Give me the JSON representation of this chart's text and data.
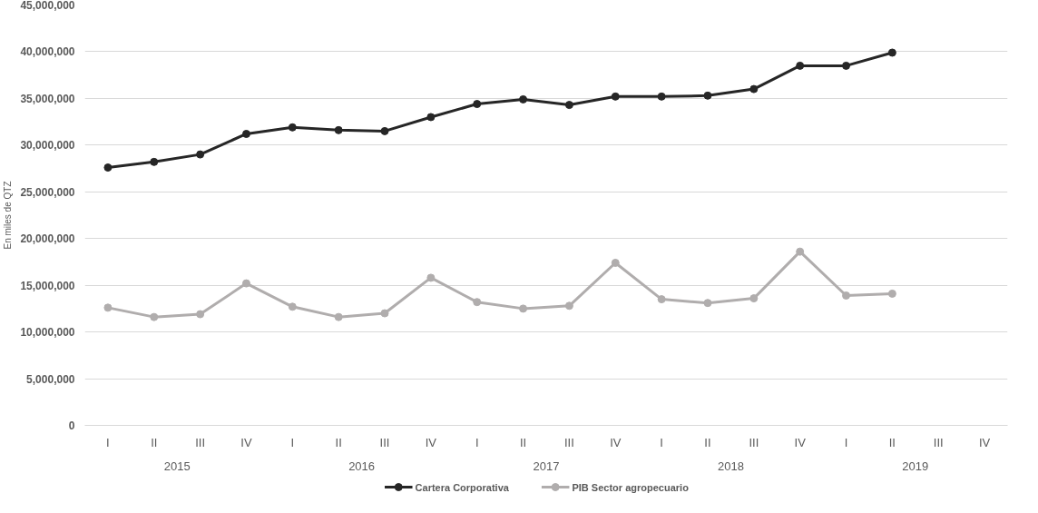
{
  "chart_data": {
    "type": "line",
    "ylabel": "En miles de QTZ",
    "categories": [
      "I",
      "II",
      "III",
      "IV",
      "I",
      "II",
      "III",
      "IV",
      "I",
      "II",
      "III",
      "IV",
      "I",
      "II",
      "III",
      "IV",
      "I",
      "II",
      "III",
      "IV"
    ],
    "annotations": [
      "2015",
      "2016",
      "2017",
      "2018",
      "2019"
    ],
    "series": [
      {
        "name": "Cartera Corporativa",
        "color": "#262626",
        "values": [
          27600000,
          28200000,
          29000000,
          31200000,
          31900000,
          31600000,
          31500000,
          33000000,
          34400000,
          34900000,
          34300000,
          35200000,
          35200000,
          35300000,
          36000000,
          38500000,
          38500000,
          39900000,
          null,
          null
        ]
      },
      {
        "name": "PIB Sector agropecuario",
        "color": "#b0adad",
        "values": [
          12600000,
          11600000,
          11900000,
          15200000,
          12700000,
          11600000,
          12000000,
          15800000,
          13200000,
          12500000,
          12800000,
          17400000,
          13500000,
          13100000,
          13600000,
          18600000,
          13900000,
          14100000,
          null,
          null
        ]
      }
    ],
    "ylim": [
      0,
      45000000
    ],
    "yticks": [
      0,
      {
        "value": 5000000,
        "label": "5,000,000"
      },
      {
        "value": 10000000,
        "label": "10,000,000"
      },
      {
        "value": 15000000,
        "label": "15,000,000"
      },
      {
        "value": 20000000,
        "label": "20,000,000"
      },
      {
        "value": 25000000,
        "label": "25,000,000"
      },
      {
        "value": 30000000,
        "label": "30,000,000"
      },
      {
        "value": 35000000,
        "label": "35,000,000"
      },
      {
        "value": 40000000,
        "label": "40,000,000"
      },
      {
        "value": 45000000,
        "label": "45,000,000"
      }
    ],
    "grid": "y",
    "legend": "bottom",
    "marker": "circle",
    "line_style": "solid"
  }
}
